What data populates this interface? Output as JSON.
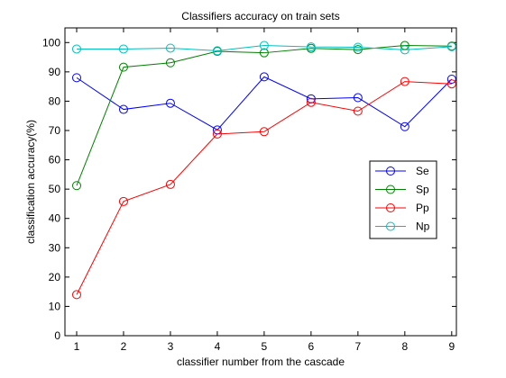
{
  "chart_data": {
    "type": "line",
    "title": "Classifiers accuracy on train sets",
    "xlabel": "classifier number from the cascade",
    "ylabel": "classification accuracy(%)",
    "x": [
      1,
      2,
      3,
      4,
      5,
      6,
      7,
      8,
      9
    ],
    "xlim": [
      0.75,
      9.1
    ],
    "ylim": [
      0,
      105
    ],
    "xticks": [
      1,
      2,
      3,
      4,
      5,
      6,
      7,
      8,
      9
    ],
    "yticks": [
      0,
      10,
      20,
      30,
      40,
      50,
      60,
      70,
      80,
      90,
      100
    ],
    "grid": false,
    "legend_position": "right",
    "series": [
      {
        "name": "Se",
        "color": "#0000ff",
        "marker": "circle",
        "values": [
          88.0,
          77.2,
          79.3,
          70.2,
          88.3,
          80.8,
          81.2,
          71.3,
          87.5
        ]
      },
      {
        "name": "Sp",
        "color": "#008000",
        "marker": "circle",
        "values": [
          51.2,
          91.6,
          93.1,
          97.0,
          96.5,
          98.0,
          97.6,
          99.0,
          98.8
        ]
      },
      {
        "name": "Pp",
        "color": "#ff0000",
        "marker": "circle",
        "values": [
          14.0,
          45.8,
          51.6,
          68.8,
          69.6,
          79.6,
          76.6,
          86.7,
          85.9
        ]
      },
      {
        "name": "Np",
        "color": "#00bfbf",
        "marker": "circle",
        "values": [
          97.8,
          97.8,
          98.1,
          97.2,
          99.0,
          98.5,
          98.4,
          97.5,
          98.6
        ]
      }
    ]
  }
}
